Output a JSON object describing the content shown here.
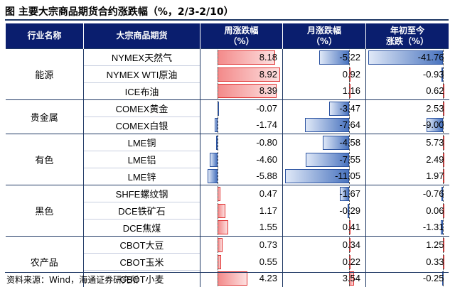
{
  "title": "图  主要大宗商品期货合约涨跌幅（%，2/3-2/10）",
  "headers": {
    "sector": "行业名称",
    "commodity": "大宗商品期货",
    "week": [
      "周涨跌幅",
      "（%）"
    ],
    "month": [
      "月涨跌幅",
      "（%）"
    ],
    "ytd": [
      "年初至今",
      "涨跌（%）"
    ]
  },
  "groups": [
    {
      "sector": "能源",
      "rows": [
        {
          "name": "NYMEX天然气",
          "week": "8.18",
          "month": "-5.22",
          "ytd": "-41.76"
        },
        {
          "name": "NYMEX WTI原油",
          "week": "8.92",
          "month": "0.92",
          "ytd": "-0.93"
        },
        {
          "name": "ICE布油",
          "week": "8.39",
          "month": "1.16",
          "ytd": "0.62"
        }
      ]
    },
    {
      "sector": "贵金属",
      "rows": [
        {
          "name": "COMEX黄金",
          "week": "-0.07",
          "month": "-3.47",
          "ytd": "2.53"
        },
        {
          "name": "COMEX白银",
          "week": "-1.74",
          "month": "-7.64",
          "ytd": "-9.00"
        }
      ]
    },
    {
      "sector": "有色",
      "rows": [
        {
          "name": "LME铜",
          "week": "-0.80",
          "month": "-4.58",
          "ytd": "5.73"
        },
        {
          "name": "LME铝",
          "week": "-4.60",
          "month": "-7.55",
          "ytd": "2.49"
        },
        {
          "name": "LME锌",
          "week": "-5.88",
          "month": "-11.05",
          "ytd": "1.97"
        }
      ]
    },
    {
      "sector": "黑色",
      "rows": [
        {
          "name": "SHFE螺纹钢",
          "week": "0.47",
          "month": "-1.67",
          "ytd": "-0.76"
        },
        {
          "name": "DCE铁矿石",
          "week": "1.17",
          "month": "-0.29",
          "ytd": "0.06"
        },
        {
          "name": "DCE焦煤",
          "week": "1.55",
          "month": "0.41",
          "ytd": "-1.31"
        }
      ]
    },
    {
      "sector": "农产品",
      "rows": [
        {
          "name": "CBOT大豆",
          "week": "0.73",
          "month": "0.34",
          "ytd": "1.25"
        },
        {
          "name": "CBOT玉米",
          "week": "0.55",
          "month": "0.22",
          "ytd": "0.33"
        },
        {
          "name": "CBOT小麦",
          "week": "4.23",
          "month": "3.54",
          "ytd": "-0.25"
        }
      ]
    }
  ],
  "source": "资料来源：Wind，海通证券研究所",
  "colors": {
    "header_bg": "#0a1e6e",
    "positive_bar": "#f38a8a",
    "negative_bar": "#4a74bf"
  }
}
